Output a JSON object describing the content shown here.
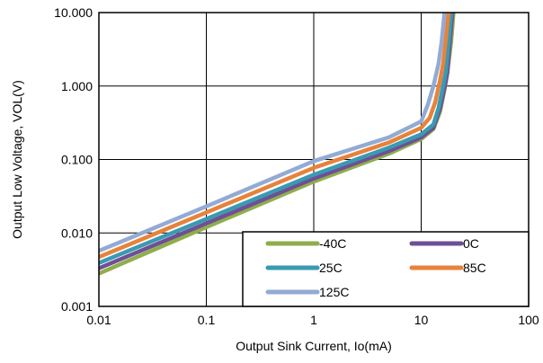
{
  "chart_data": {
    "type": "line",
    "xlabel": "Output Sink Current, Io(mA)",
    "ylabel": "Output Low Voltage, VOL(V)",
    "x_scale": "log",
    "y_scale": "log",
    "xlim": [
      0.01,
      100
    ],
    "ylim": [
      0.001,
      10
    ],
    "x_ticks": [
      0.01,
      0.1,
      1,
      10,
      100
    ],
    "x_tick_labels": [
      "0.01",
      "0.1",
      "1",
      "10",
      "100"
    ],
    "y_ticks": [
      0.001,
      0.01,
      0.1,
      1,
      10
    ],
    "y_tick_labels": [
      "0.001",
      "0.010",
      "0.100",
      "1.000",
      "10.000"
    ],
    "grid": true,
    "legend_placement": "bottom-right",
    "series": [
      {
        "name": "-40C",
        "color": "#8fae4b",
        "points": [
          [
            0.01,
            0.0028
          ],
          [
            0.1,
            0.012
          ],
          [
            1,
            0.05
          ],
          [
            5,
            0.12
          ],
          [
            10,
            0.19
          ],
          [
            13,
            0.26
          ],
          [
            15,
            0.45
          ],
          [
            16.5,
            0.9
          ],
          [
            17.5,
            1.5
          ],
          [
            19,
            4
          ],
          [
            20,
            10
          ]
        ]
      },
      {
        "name": "0C",
        "color": "#6f4f96",
        "points": [
          [
            0.01,
            0.0033
          ],
          [
            0.1,
            0.0135
          ],
          [
            1,
            0.055
          ],
          [
            5,
            0.13
          ],
          [
            10,
            0.2
          ],
          [
            13,
            0.27
          ],
          [
            15,
            0.5
          ],
          [
            16.5,
            0.95
          ],
          [
            17.5,
            1.5
          ],
          [
            18.5,
            4
          ],
          [
            19.5,
            10
          ]
        ]
      },
      {
        "name": "25C",
        "color": "#3a9ab1",
        "points": [
          [
            0.01,
            0.0039
          ],
          [
            0.1,
            0.0155
          ],
          [
            1,
            0.062
          ],
          [
            5,
            0.145
          ],
          [
            10,
            0.22
          ],
          [
            13,
            0.3
          ],
          [
            14.5,
            0.5
          ],
          [
            16,
            1.0
          ],
          [
            17,
            1.6
          ],
          [
            18,
            4
          ],
          [
            19,
            10
          ]
        ]
      },
      {
        "name": "85C",
        "color": "#e8823a",
        "points": [
          [
            0.01,
            0.0047
          ],
          [
            0.1,
            0.019
          ],
          [
            1,
            0.077
          ],
          [
            5,
            0.17
          ],
          [
            10,
            0.27
          ],
          [
            12,
            0.37
          ],
          [
            13.5,
            0.6
          ],
          [
            15,
            1.2
          ],
          [
            16,
            2.0
          ],
          [
            17,
            4.5
          ],
          [
            18,
            10
          ]
        ]
      },
      {
        "name": "125C",
        "color": "#92abd4",
        "points": [
          [
            0.01,
            0.0057
          ],
          [
            0.1,
            0.023
          ],
          [
            1,
            0.095
          ],
          [
            5,
            0.2
          ],
          [
            10,
            0.33
          ],
          [
            11.5,
            0.55
          ],
          [
            13,
            1.0
          ],
          [
            14.5,
            2.0
          ],
          [
            15.5,
            4
          ],
          [
            16.5,
            10
          ]
        ]
      }
    ]
  }
}
